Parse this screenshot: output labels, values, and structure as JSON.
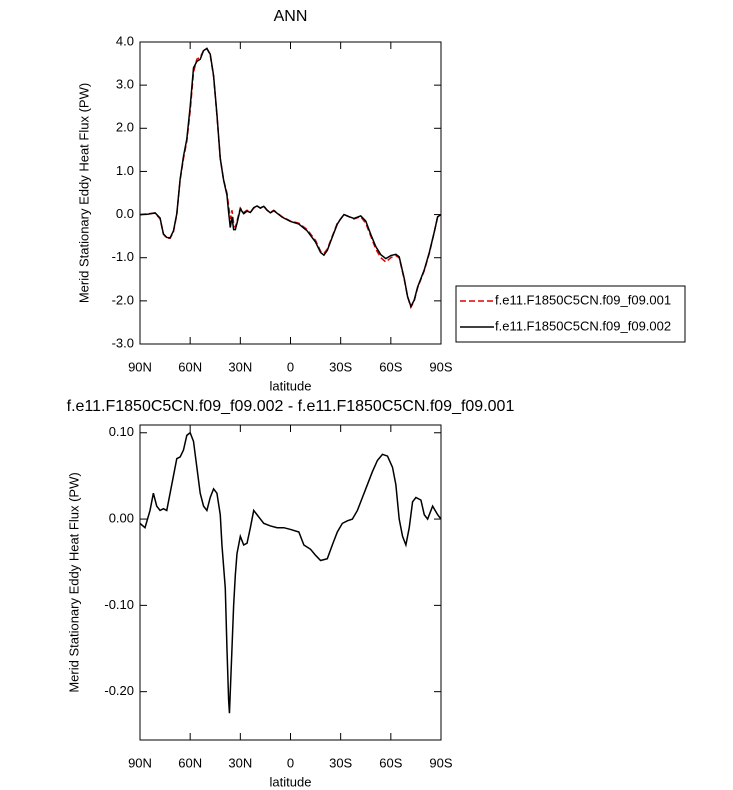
{
  "chart_data": [
    {
      "type": "line",
      "title": "ANN",
      "xlabel": "latitude",
      "ylabel": "Merid Stationary Eddy Heat Flux (PW)",
      "xlim": [
        90,
        -90
      ],
      "xticks": [
        {
          "value": 90,
          "label": "90N"
        },
        {
          "value": 60,
          "label": "60N"
        },
        {
          "value": 30,
          "label": "30N"
        },
        0,
        {
          "value": -30,
          "label": "30S"
        },
        {
          "value": -60,
          "label": "60S"
        },
        {
          "value": -90,
          "label": "90S"
        }
      ],
      "ylim": [
        -3,
        4
      ],
      "yticks": [
        {
          "value": 4,
          "label": "4.0"
        },
        {
          "value": 3,
          "label": "3.0"
        },
        {
          "value": 2,
          "label": "2.0"
        },
        {
          "value": 1,
          "label": "1.0"
        },
        {
          "value": 0,
          "label": "0.0"
        },
        {
          "value": -1,
          "label": "-1.0"
        },
        {
          "value": -2,
          "label": "-2.0"
        },
        {
          "value": -3,
          "label": "-3.0"
        }
      ],
      "legend": "right",
      "x": [
        90,
        85,
        81,
        78,
        76,
        74,
        72,
        70,
        68,
        66,
        64,
        62,
        60,
        58,
        56,
        54,
        52,
        50,
        48,
        46,
        44,
        42,
        40,
        38,
        37,
        36,
        35,
        34,
        33,
        32,
        30,
        28,
        26,
        24,
        22,
        20,
        18,
        16,
        14,
        12,
        10,
        5,
        0,
        -5,
        -10,
        -15,
        -18,
        -20,
        -22,
        -25,
        -28,
        -30,
        -32,
        -35,
        -38,
        -42,
        -45,
        -48,
        -51,
        -54,
        -57,
        -60,
        -63,
        -65,
        -68,
        -70,
        -72,
        -74,
        -76,
        -78,
        -80,
        -83,
        -86,
        -88,
        -90
      ],
      "series": [
        {
          "name": "f.e11.F1850C5CN.f09_f09.001",
          "color": "#e00000",
          "line_style": "dashed",
          "values": [
            0,
            0.02,
            0.03,
            -0.1,
            -0.45,
            -0.55,
            -0.55,
            -0.4,
            0,
            0.8,
            1.3,
            1.7,
            2.4,
            3.3,
            3.6,
            3.65,
            3.8,
            3.85,
            3.7,
            3.2,
            2.3,
            1.3,
            0.8,
            0.5,
            0.2,
            -0.1,
            0.1,
            -0.2,
            -0.3,
            -0.15,
            0.15,
            0.05,
            0.1,
            0.05,
            0.15,
            0.2,
            0.15,
            0.2,
            0.1,
            0.05,
            0.1,
            -0.05,
            -0.15,
            -0.2,
            -0.35,
            -0.6,
            -0.85,
            -0.9,
            -0.8,
            -0.5,
            -0.2,
            -0.1,
            0,
            -0.05,
            -0.1,
            -0.05,
            -0.2,
            -0.5,
            -0.8,
            -1.0,
            -1.1,
            -1.0,
            -0.95,
            -1.0,
            -1.5,
            -1.9,
            -2.15,
            -2.0,
            -1.7,
            -1.5,
            -1.3,
            -0.9,
            -0.4,
            -0.05,
            0
          ]
        },
        {
          "name": "f.e11.F1850C5CN.f09_f09.002",
          "color": "#000000",
          "line_style": "solid",
          "values": [
            0,
            0.01,
            0.04,
            -0.08,
            -0.45,
            -0.53,
            -0.54,
            -0.38,
            0.02,
            0.82,
            1.35,
            1.75,
            2.5,
            3.4,
            3.55,
            3.6,
            3.8,
            3.85,
            3.72,
            3.22,
            2.33,
            1.3,
            0.8,
            0.45,
            0.05,
            -0.3,
            -0.05,
            -0.35,
            -0.35,
            -0.2,
            0.13,
            0.02,
            0.08,
            0.05,
            0.16,
            0.2,
            0.15,
            0.19,
            0.1,
            0.04,
            0.09,
            -0.06,
            -0.16,
            -0.22,
            -0.38,
            -0.64,
            -0.88,
            -0.94,
            -0.83,
            -0.52,
            -0.22,
            -0.1,
            0.0,
            -0.05,
            -0.09,
            -0.03,
            -0.15,
            -0.46,
            -0.74,
            -0.93,
            -1.02,
            -0.95,
            -0.92,
            -0.98,
            -1.48,
            -1.9,
            -2.13,
            -1.98,
            -1.68,
            -1.48,
            -1.28,
            -0.88,
            -0.4,
            -0.05,
            0
          ]
        }
      ]
    },
    {
      "type": "line",
      "title": "f.e11.F1850C5CN.f09_f09.002 - f.e11.F1850C5CN.f09_f09.001",
      "xlabel": "latitude",
      "ylabel": "Merid Stationary Eddy Heat Flux (PW)",
      "xlim": [
        90,
        -90
      ],
      "xticks": [
        {
          "value": 90,
          "label": "90N"
        },
        {
          "value": 60,
          "label": "60N"
        },
        {
          "value": 30,
          "label": "30N"
        },
        0,
        {
          "value": -30,
          "label": "30S"
        },
        {
          "value": -60,
          "label": "60S"
        },
        {
          "value": -90,
          "label": "90S"
        }
      ],
      "ylim": [
        -0.256,
        0.109
      ],
      "yticks": [
        {
          "value": 0.1,
          "label": "0.10"
        },
        {
          "value": 0,
          "label": "0.00"
        },
        {
          "value": -0.1,
          "label": "-0.10"
        },
        {
          "value": -0.2,
          "label": "-0.20"
        }
      ],
      "x": [
        90,
        87,
        84,
        82,
        80,
        78,
        76,
        74,
        72,
        70,
        68,
        66,
        64,
        62,
        60,
        58,
        56,
        54,
        52,
        50,
        48,
        46,
        44,
        42,
        41,
        39,
        38,
        37,
        36.5,
        35,
        34,
        33,
        32,
        30,
        28,
        26,
        24,
        22,
        20,
        18,
        16,
        12,
        8,
        4,
        0,
        -5,
        -8,
        -12,
        -15,
        -18,
        -22,
        -25,
        -28,
        -31,
        -34,
        -37,
        -40,
        -43,
        -46,
        -49,
        -52,
        -55,
        -58,
        -61,
        -63,
        -65,
        -67,
        -69,
        -71,
        -73,
        -75,
        -78,
        -80,
        -82,
        -85,
        -88,
        -90
      ],
      "series": [
        {
          "color": "#000000",
          "line_style": "solid",
          "values": [
            -0.005,
            -0.01,
            0.01,
            0.03,
            0.015,
            0.01,
            0.012,
            0.01,
            0.03,
            0.05,
            0.07,
            0.072,
            0.08,
            0.097,
            0.1,
            0.09,
            0.06,
            0.03,
            0.015,
            0.01,
            0.025,
            0.035,
            0.03,
            0.005,
            -0.03,
            -0.08,
            -0.15,
            -0.21,
            -0.225,
            -0.15,
            -0.1,
            -0.065,
            -0.04,
            -0.02,
            -0.03,
            -0.028,
            -0.01,
            0.01,
            0.005,
            0.0,
            -0.005,
            -0.008,
            -0.01,
            -0.01,
            -0.012,
            -0.015,
            -0.03,
            -0.035,
            -0.042,
            -0.048,
            -0.046,
            -0.03,
            -0.015,
            -0.005,
            -0.002,
            0.0,
            0.01,
            0.025,
            0.04,
            0.055,
            0.068,
            0.075,
            0.073,
            0.06,
            0.04,
            0.0,
            -0.02,
            -0.03,
            -0.01,
            0.02,
            0.025,
            0.022,
            0.005,
            0.0,
            0.015,
            0.005,
            0.0
          ]
        }
      ]
    }
  ]
}
